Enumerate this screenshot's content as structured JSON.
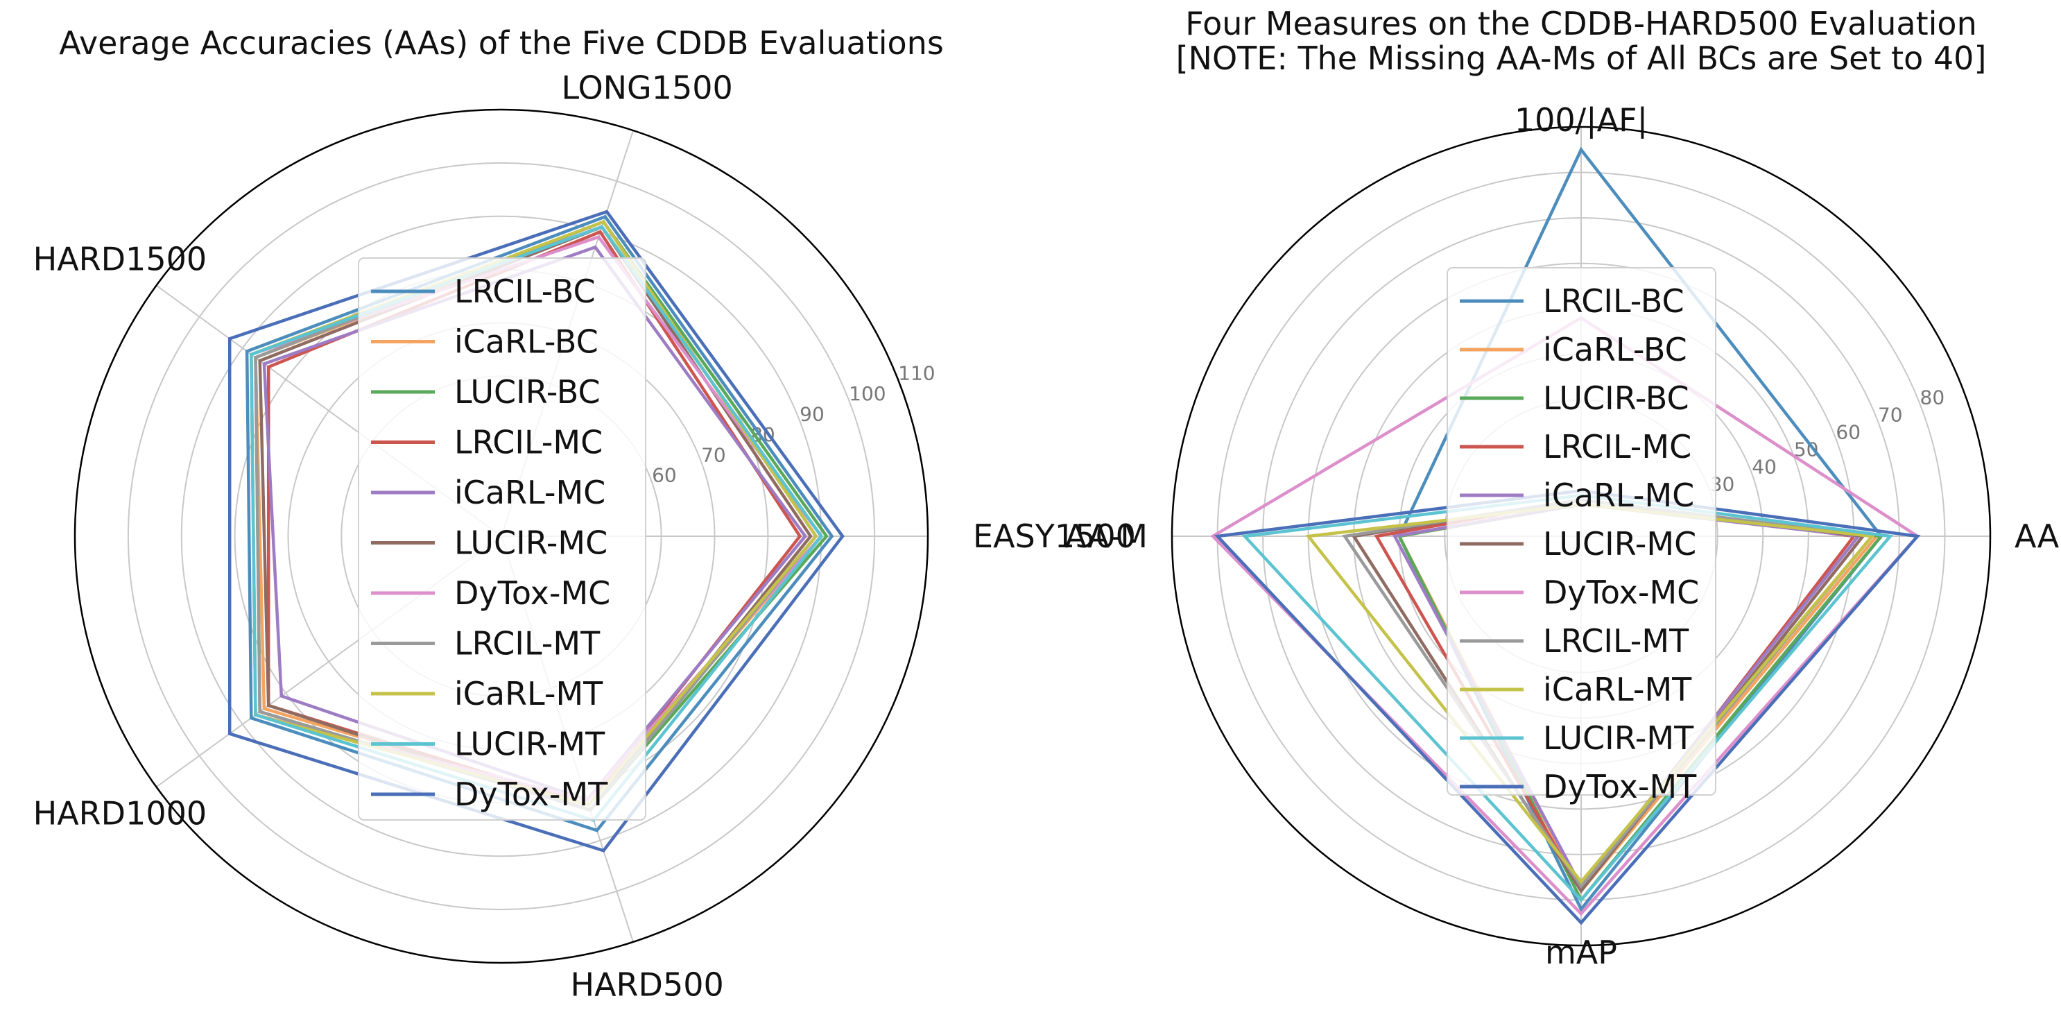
{
  "colors": [
    "#4c8dbd",
    "#f4a460",
    "#5aa95a",
    "#cc5550",
    "#9e7cc4",
    "#8f6b62",
    "#dc8fcb",
    "#9a9a9a",
    "#c5c24a",
    "#5cc3d1",
    "#4a6fb8"
  ],
  "chart_data": [
    {
      "type": "radar",
      "title": "Average Accuracies (AAs) of the Five CDDB Evaluations",
      "axes": [
        "EASY1500",
        "LONG1500",
        "HARD1500",
        "HARD1000",
        "HARD500"
      ],
      "rlim": [
        30,
        110
      ],
      "rticks": [
        60,
        70,
        80,
        90,
        100,
        110
      ],
      "grid": true,
      "legend": "center",
      "series": [
        {
          "name": "LRCIL-BC",
          "values": [
            92,
            93,
            89,
            88,
            88
          ]
        },
        {
          "name": "iCaRL-BC",
          "values": [
            90,
            91,
            87,
            85,
            83
          ]
        },
        {
          "name": "LUCIR-BC",
          "values": [
            91,
            92,
            87,
            86,
            84
          ]
        },
        {
          "name": "LRCIL-MC",
          "values": [
            86,
            90,
            84,
            84,
            83
          ]
        },
        {
          "name": "iCaRL-MC",
          "values": [
            87,
            87,
            85,
            81,
            82
          ]
        },
        {
          "name": "LUCIR-MC",
          "values": [
            88,
            91,
            86,
            84,
            84
          ]
        },
        {
          "name": "DyTox-MC",
          "values": [
            90,
            89,
            88,
            87,
            82
          ]
        },
        {
          "name": "LRCIL-MT",
          "values": [
            89,
            92,
            87,
            86,
            84
          ]
        },
        {
          "name": "iCaRL-MT",
          "values": [
            89,
            92,
            88,
            87,
            83
          ]
        },
        {
          "name": "LUCIR-MT",
          "values": [
            90,
            91,
            88,
            87,
            86
          ]
        },
        {
          "name": "DyTox-MT",
          "values": [
            94,
            94,
            93,
            93,
            92
          ]
        }
      ]
    },
    {
      "type": "radar",
      "title": "Four Measures on the CDDB-HARD500 Evaluation",
      "subtitle": "[NOTE: The Missing AA-Ms of All BCs are Set to 40]",
      "axes": [
        "AA",
        "100/|AF|",
        "AA-M",
        "mAP"
      ],
      "rlim": [
        0,
        90
      ],
      "rticks": [
        30,
        40,
        50,
        60,
        70,
        80
      ],
      "grid": true,
      "legend": "center",
      "series": [
        {
          "name": "LRCIL-BC",
          "values": [
            66,
            85,
            40,
            82
          ]
        },
        {
          "name": "iCaRL-BC",
          "values": [
            65,
            7,
            40,
            78
          ]
        },
        {
          "name": "LUCIR-BC",
          "values": [
            66,
            7,
            40,
            80
          ]
        },
        {
          "name": "LRCIL-MC",
          "values": [
            60,
            8,
            45,
            78
          ]
        },
        {
          "name": "iCaRL-MC",
          "values": [
            61,
            7,
            41,
            77
          ]
        },
        {
          "name": "LUCIR-MC",
          "values": [
            62,
            8,
            50,
            78
          ]
        },
        {
          "name": "DyTox-MC",
          "values": [
            74,
            48,
            81,
            83
          ]
        },
        {
          "name": "LRCIL-MT",
          "values": [
            64,
            8,
            52,
            77
          ]
        },
        {
          "name": "iCaRL-MT",
          "values": [
            64,
            7,
            60,
            76
          ]
        },
        {
          "name": "LUCIR-MT",
          "values": [
            68,
            9,
            74,
            80
          ]
        },
        {
          "name": "DyTox-MT",
          "values": [
            74,
            10,
            80,
            85
          ]
        }
      ]
    }
  ]
}
